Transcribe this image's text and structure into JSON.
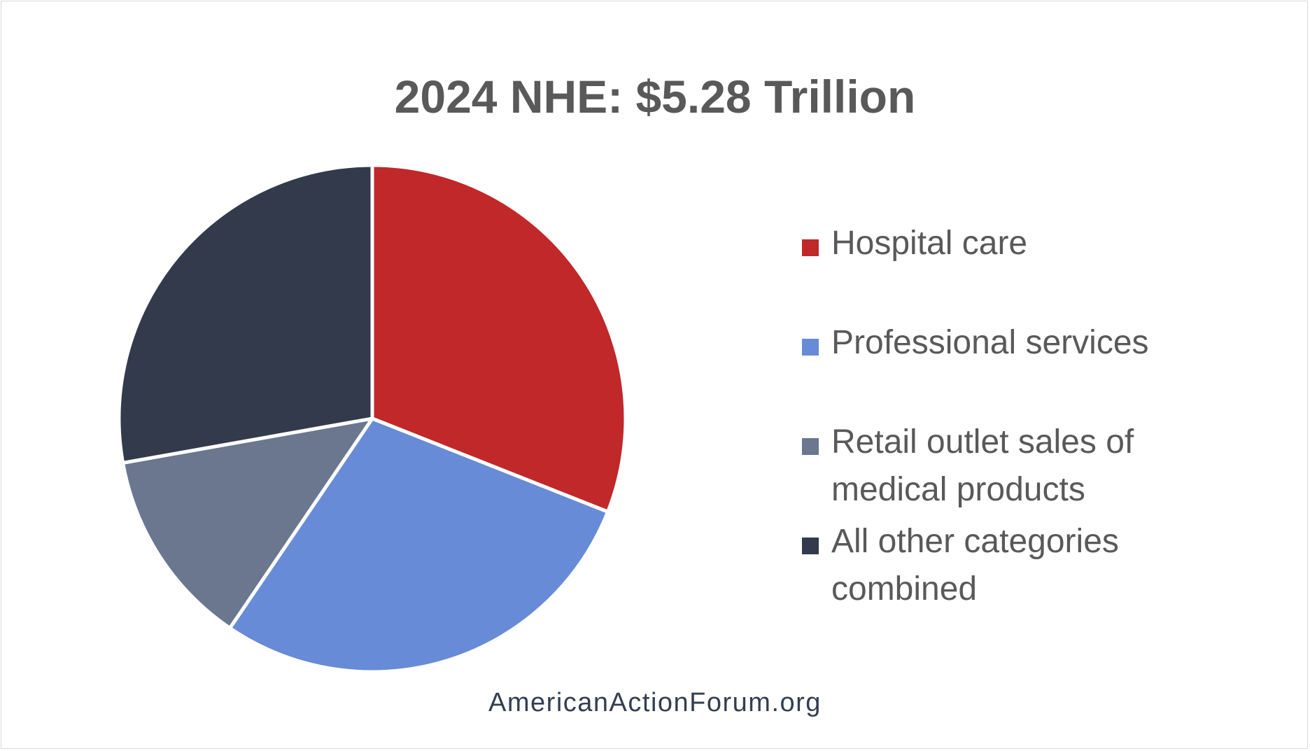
{
  "chart_data": {
    "type": "pie",
    "title": "2024 NHE: $5.28 Trillion",
    "categories": [
      "Hospital care",
      "Professional services",
      "Retail outlet sales of medical products",
      "All other categories combined"
    ],
    "values": [
      31.0,
      28.5,
      12.7,
      27.8
    ],
    "colors": [
      "#c0282a",
      "#678bd6",
      "#6a778f",
      "#333a4c"
    ],
    "legend": "right",
    "start_angle_deg": 0,
    "direction": "clockwise"
  },
  "source": "AmericanActionForum.org"
}
